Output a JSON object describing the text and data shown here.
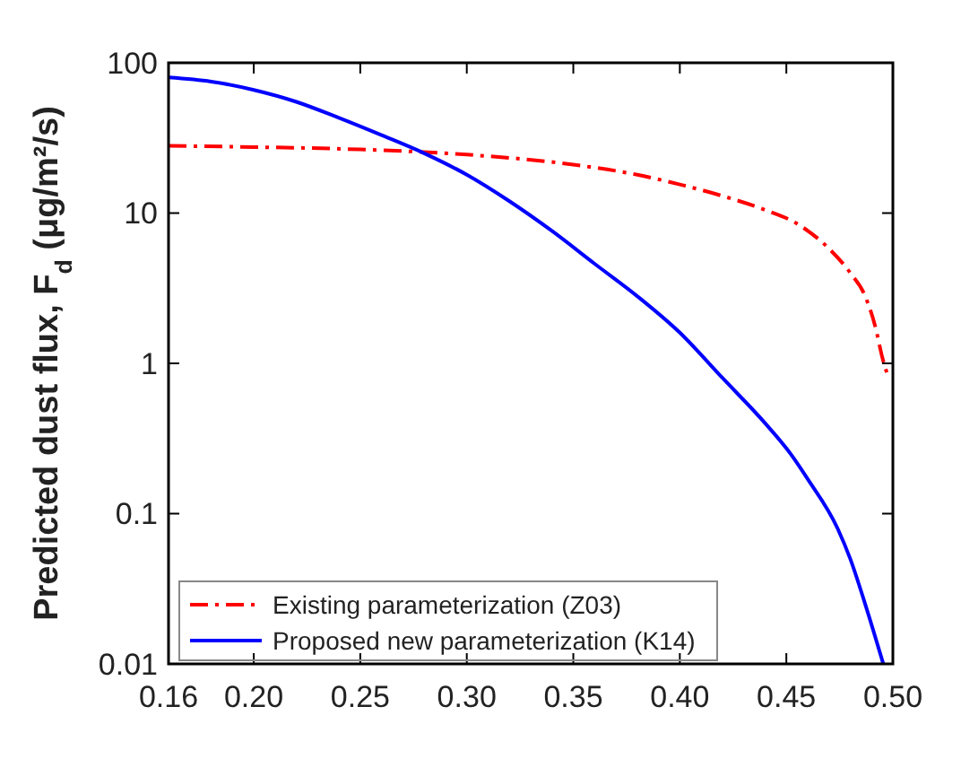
{
  "chart_data": {
    "type": "line",
    "ylabel": "Predicted dust flux, F$_{d}$ (μg/m²/s)",
    "log": "y",
    "xlim": [
      0.16,
      0.5
    ],
    "xticks": [
      {
        "value": 0.16,
        "label": "0.16"
      },
      {
        "value": 0.2,
        "label": "0.20"
      },
      {
        "value": 0.25,
        "label": "0.25"
      },
      {
        "value": 0.3,
        "label": "0.30"
      },
      {
        "value": 0.35,
        "label": "0.35"
      },
      {
        "value": 0.4,
        "label": "0.40"
      },
      {
        "value": 0.45,
        "label": "0.45"
      },
      {
        "value": 0.5,
        "label": "0.50"
      }
    ],
    "ylim": [
      0.01,
      100
    ],
    "yticks": [
      0.01,
      0.1,
      1,
      10,
      100
    ],
    "grid": false,
    "legend": "bottom left",
    "marker": "none",
    "series": [
      {
        "name": "Existing parameterization (Z03)",
        "color": "#ff0000",
        "line_style": "dashdot",
        "x": [
          0.16,
          0.2,
          0.25,
          0.3,
          0.35,
          0.38,
          0.4,
          0.42,
          0.44,
          0.455,
          0.47,
          0.48,
          0.487,
          0.492,
          0.495,
          0.498
        ],
        "values": [
          28,
          27.5,
          26.5,
          24.5,
          21,
          18,
          15.5,
          13,
          10.5,
          8.5,
          5.8,
          4,
          2.8,
          1.7,
          1.1,
          0.8
        ]
      },
      {
        "name": "Proposed new parameterization (K14)",
        "color": "#0000ff",
        "line_style": "solid",
        "x": [
          0.16,
          0.18,
          0.2,
          0.22,
          0.24,
          0.26,
          0.28,
          0.3,
          0.32,
          0.34,
          0.36,
          0.38,
          0.4,
          0.42,
          0.44,
          0.452,
          0.46,
          0.474,
          0.48,
          0.487,
          0.4955
        ],
        "values": [
          80,
          75,
          66,
          55,
          43,
          33,
          25,
          18,
          12,
          7.6,
          4.6,
          2.8,
          1.6,
          0.8,
          0.4,
          0.25,
          0.17,
          0.08,
          0.05,
          0.025,
          0.01
        ]
      }
    ]
  }
}
